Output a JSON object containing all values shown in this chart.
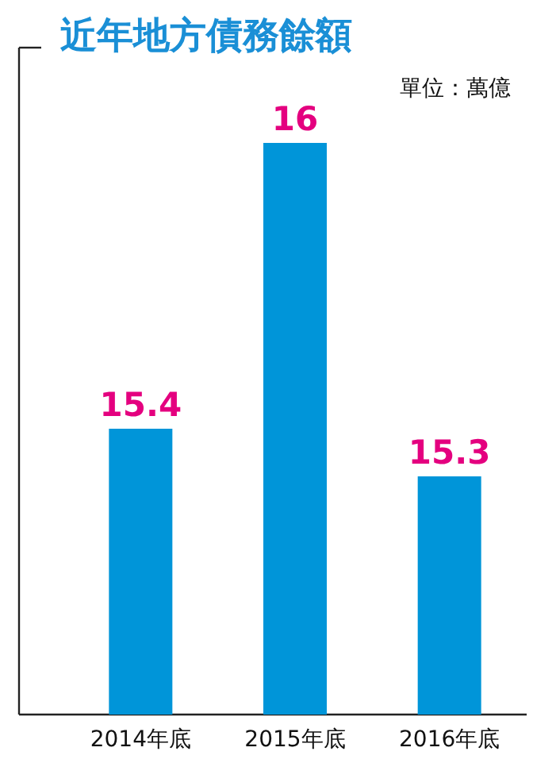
{
  "chart_data": {
    "type": "bar",
    "title": "近年地方債務餘額",
    "subtitle": "單位：萬億",
    "categories": [
      "2014年底",
      "2015年底",
      "2016年底"
    ],
    "values": [
      15.4,
      16,
      15.3
    ],
    "color": "#0095d9",
    "ylim": [
      14.8,
      16.2
    ],
    "data_labels": true,
    "tick_labels": "x"
  }
}
